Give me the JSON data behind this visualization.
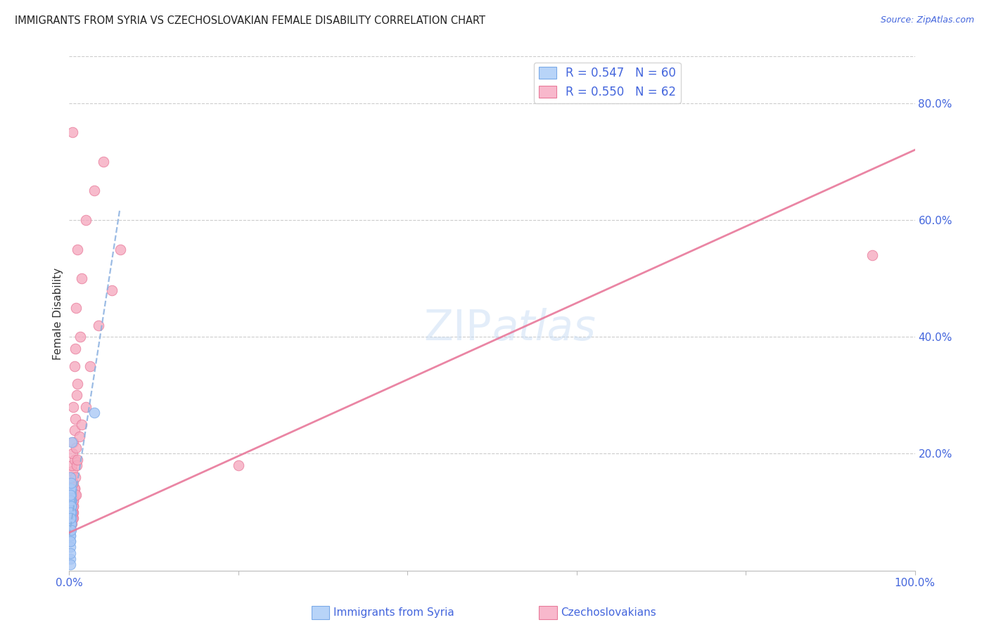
{
  "title": "IMMIGRANTS FROM SYRIA VS CZECHOSLOVAKIAN FEMALE DISABILITY CORRELATION CHART",
  "source": "Source: ZipAtlas.com",
  "ylabel": "Female Disability",
  "right_yticks": [
    "80.0%",
    "60.0%",
    "40.0%",
    "20.0%"
  ],
  "right_ytick_vals": [
    0.8,
    0.6,
    0.4,
    0.2
  ],
  "legend_color1": "#b8d4f8",
  "legend_color2": "#f8b8cc",
  "watermark_text": "ZIPatlas",
  "syria_face_color": "#aac8f5",
  "syria_edge_color": "#7aaae8",
  "czech_face_color": "#f5aac0",
  "czech_edge_color": "#e87a9a",
  "syria_line_color": "#8ab0e0",
  "czech_line_color": "#e8789a",
  "syria_scatter_x": [
    0.001,
    0.002,
    0.001,
    0.001,
    0.002,
    0.001,
    0.001,
    0.002,
    0.001,
    0.001,
    0.002,
    0.001,
    0.002,
    0.001,
    0.001,
    0.002,
    0.001,
    0.001,
    0.002,
    0.001,
    0.001,
    0.002,
    0.001,
    0.001,
    0.002,
    0.001,
    0.001,
    0.002,
    0.001,
    0.001,
    0.002,
    0.001,
    0.001,
    0.002,
    0.001,
    0.001,
    0.002,
    0.001,
    0.001,
    0.002,
    0.001,
    0.001,
    0.003,
    0.001,
    0.002,
    0.001,
    0.001,
    0.002,
    0.001,
    0.001,
    0.001,
    0.002,
    0.001,
    0.001,
    0.002,
    0.001,
    0.001,
    0.002,
    0.001,
    0.03
  ],
  "syria_scatter_y": [
    0.11,
    0.12,
    0.13,
    0.1,
    0.11,
    0.14,
    0.09,
    0.1,
    0.12,
    0.08,
    0.11,
    0.13,
    0.12,
    0.1,
    0.09,
    0.11,
    0.14,
    0.1,
    0.13,
    0.12,
    0.11,
    0.1,
    0.09,
    0.13,
    0.12,
    0.08,
    0.11,
    0.1,
    0.14,
    0.09,
    0.12,
    0.11,
    0.07,
    0.1,
    0.13,
    0.08,
    0.11,
    0.12,
    0.06,
    0.09,
    0.05,
    0.07,
    0.22,
    0.16,
    0.14,
    0.04,
    0.02,
    0.15,
    0.03,
    0.01,
    0.06,
    0.08,
    0.12,
    0.13,
    0.11,
    0.1,
    0.09,
    0.07,
    0.05,
    0.27
  ],
  "czech_scatter_x": [
    0.002,
    0.003,
    0.004,
    0.003,
    0.002,
    0.004,
    0.005,
    0.003,
    0.002,
    0.004,
    0.003,
    0.005,
    0.002,
    0.004,
    0.003,
    0.005,
    0.006,
    0.004,
    0.003,
    0.005,
    0.004,
    0.006,
    0.005,
    0.003,
    0.007,
    0.005,
    0.004,
    0.006,
    0.003,
    0.005,
    0.008,
    0.006,
    0.004,
    0.007,
    0.005,
    0.009,
    0.006,
    0.008,
    0.01,
    0.007,
    0.005,
    0.012,
    0.009,
    0.006,
    0.015,
    0.01,
    0.007,
    0.02,
    0.013,
    0.008,
    0.025,
    0.015,
    0.01,
    0.035,
    0.02,
    0.05,
    0.03,
    0.06,
    0.04,
    0.2,
    0.95,
    0.004
  ],
  "czech_scatter_y": [
    0.1,
    0.08,
    0.13,
    0.11,
    0.09,
    0.12,
    0.1,
    0.14,
    0.08,
    0.11,
    0.13,
    0.09,
    0.12,
    0.1,
    0.14,
    0.11,
    0.13,
    0.09,
    0.15,
    0.12,
    0.1,
    0.14,
    0.11,
    0.16,
    0.13,
    0.12,
    0.17,
    0.14,
    0.18,
    0.15,
    0.13,
    0.19,
    0.2,
    0.16,
    0.22,
    0.18,
    0.24,
    0.21,
    0.19,
    0.26,
    0.28,
    0.23,
    0.3,
    0.35,
    0.25,
    0.32,
    0.38,
    0.28,
    0.4,
    0.45,
    0.35,
    0.5,
    0.55,
    0.42,
    0.6,
    0.48,
    0.65,
    0.55,
    0.7,
    0.18,
    0.54,
    0.75
  ],
  "syria_trend_x": [
    0.0,
    0.06
  ],
  "syria_trend_y": [
    0.06,
    0.62
  ],
  "czech_trend_x": [
    0.0,
    1.0
  ],
  "czech_trend_y": [
    0.065,
    0.72
  ],
  "xlim": [
    0.0,
    1.0
  ],
  "ylim": [
    0.0,
    0.88
  ],
  "background_color": "#ffffff",
  "grid_color": "#cccccc",
  "title_color": "#222222",
  "axis_tick_color": "#4466dd",
  "ylabel_color": "#333333"
}
